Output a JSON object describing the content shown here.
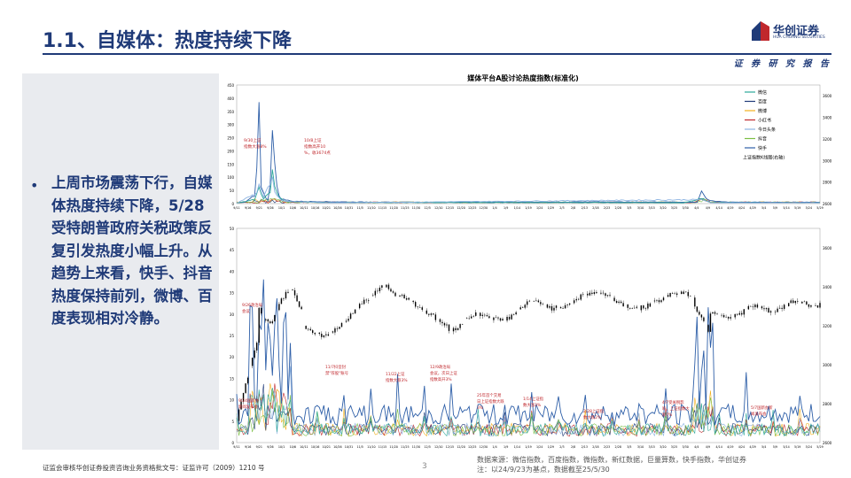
{
  "page": {
    "title": "1.1、自媒体：热度持续下降",
    "logo_name": "华创证券",
    "logo_sub": "HUA CHUANG SECURITIES",
    "report_tag": "证 券 研 究 报 告",
    "bullet_text": "上周市场震荡下行，自媒体热度持续下降，5/28受特朗普政府关税政策反复引发热度小幅上升。从趋势上来看，快手、抖音热度保持前列，微博、百度表现相对冷静。",
    "footer_left": "证监会审核华创证券投资咨询业务资格批文号：证监许可（2009）1210 号",
    "page_number": "3",
    "source": "数据来源：微信指数，百度指数，微指数，新红数据，巨量算数，快手指数，华创证券",
    "note": "注：以24/9/23为基点，数据截至25/5/30"
  },
  "colors": {
    "accent": "#1f3a78",
    "weixin": "#2ca89a",
    "baidu": "#1f3a78",
    "weibo": "#f2b01e",
    "xiaohongshu": "#c0282d",
    "toutiao": "#8db4e2",
    "douyin": "#7bbf44",
    "kuaishou": "#2e5fa8",
    "kline": "#000000",
    "annotation": "#c0282d"
  },
  "chart_data": [
    {
      "type": "line",
      "title": "媒体平台A股讨论热度指数(标准化)",
      "legend": [
        "微信",
        "百度",
        "微博",
        "小红书",
        "今日头条",
        "抖音",
        "快手",
        "上证指数K线图(右轴)"
      ],
      "legend_position": "top-right",
      "ylim": [
        0,
        450
      ],
      "yticks": [
        0,
        50,
        100,
        150,
        200,
        250,
        300,
        350,
        400,
        450
      ],
      "y2lim": [
        2600,
        3700
      ],
      "y2ticks": [
        2600,
        2800,
        3000,
        3200,
        3400,
        3600
      ],
      "x_ticks": [
        "9/11",
        "9/16",
        "9/21",
        "9/26",
        "10/1",
        "10/6",
        "10/11",
        "10/16",
        "10/21",
        "10/26",
        "10/31",
        "11/5",
        "11/10",
        "11/15",
        "11/20",
        "11/25",
        "11/30",
        "12/5",
        "12/10",
        "12/15",
        "12/20",
        "12/25",
        "12/30",
        "1/4",
        "1/9",
        "1/14",
        "1/19",
        "1/24",
        "1/29",
        "2/3",
        "2/8",
        "2/13",
        "2/18",
        "2/23",
        "2/28",
        "3/5",
        "3/10",
        "3/15",
        "3/20",
        "3/25",
        "3/30",
        "4/4",
        "4/9",
        "4/14",
        "4/19",
        "4/24",
        "4/29",
        "5/4",
        "5/9",
        "5/14",
        "5/19",
        "5/24",
        "5/29"
      ],
      "series_peaks": [
        {
          "name": "快手",
          "points": [
            [
              0,
              3
            ],
            [
              4,
              6
            ],
            [
              8,
              30
            ],
            [
              9,
              130
            ],
            [
              10,
              415
            ],
            [
              11,
              70
            ],
            [
              12,
              40
            ],
            [
              13,
              20
            ],
            [
              14,
              15
            ],
            [
              15,
              80
            ],
            [
              16,
              320
            ],
            [
              17,
              150
            ],
            [
              18,
              60
            ],
            [
              19,
              30
            ],
            [
              20,
              18
            ],
            [
              24,
              10
            ],
            [
              30,
              8
            ],
            [
              40,
              7
            ],
            [
              50,
              6
            ],
            [
              60,
              6
            ],
            [
              70,
              5
            ],
            [
              80,
              5
            ],
            [
              100,
              5
            ],
            [
              120,
              5
            ],
            [
              140,
              5
            ],
            [
              150,
              6
            ],
            [
              160,
              7
            ],
            [
              170,
              6
            ],
            [
              190,
              6
            ],
            [
              200,
              5
            ],
            [
              206,
              5
            ],
            [
              208,
              50
            ],
            [
              210,
              20
            ],
            [
              212,
              10
            ],
            [
              220,
              6
            ],
            [
              240,
              5
            ],
            [
              260,
              5
            ]
          ]
        },
        {
          "name": "微信",
          "points": [
            [
              0,
              2
            ],
            [
              8,
              15
            ],
            [
              10,
              60
            ],
            [
              12,
              20
            ],
            [
              15,
              40
            ],
            [
              16,
              130
            ],
            [
              17,
              60
            ],
            [
              19,
              25
            ],
            [
              22,
              8
            ],
            [
              40,
              4
            ],
            [
              80,
              4
            ],
            [
              120,
              4
            ],
            [
              160,
              4
            ],
            [
              200,
              3
            ],
            [
              208,
              20
            ],
            [
              212,
              4
            ],
            [
              260,
              3
            ]
          ]
        },
        {
          "name": "今日头条",
          "points": [
            [
              0,
              2
            ],
            [
              9,
              40
            ],
            [
              10,
              80
            ],
            [
              12,
              25
            ],
            [
              16,
              90
            ],
            [
              17,
              40
            ],
            [
              20,
              10
            ],
            [
              40,
              3
            ],
            [
              208,
              15
            ],
            [
              212,
              3
            ],
            [
              260,
              3
            ]
          ]
        }
      ],
      "annotations": [
        "9/30上证指数大涨8%",
        "10/8上证指数高开10%，收3674点"
      ]
    },
    {
      "type": "line",
      "ylim": [
        0,
        50
      ],
      "yticks": [
        0,
        5,
        10,
        15,
        20,
        25,
        30,
        35,
        40,
        45,
        50
      ],
      "y2lim": [
        2600,
        3700
      ],
      "y2ticks": [
        2600,
        2800,
        3000,
        3200,
        3400,
        3600
      ],
      "x_ticks": [
        "9/11",
        "9/16",
        "9/21",
        "9/26",
        "10/1",
        "10/6",
        "10/11",
        "10/16",
        "10/21",
        "10/26",
        "10/31",
        "11/5",
        "11/10",
        "11/15",
        "11/20",
        "11/25",
        "11/30",
        "12/5",
        "12/10",
        "12/15",
        "12/20",
        "12/25",
        "12/30",
        "1/4",
        "1/9",
        "1/14",
        "1/19",
        "1/24",
        "1/29",
        "2/3",
        "2/8",
        "2/13",
        "2/18",
        "2/23",
        "2/28",
        "3/5",
        "3/10",
        "3/15",
        "3/20",
        "3/25",
        "3/30",
        "4/4",
        "4/9",
        "4/14",
        "4/19",
        "4/24",
        "4/29",
        "5/4",
        "5/9",
        "5/14",
        "5/19",
        "5/24",
        "5/29"
      ],
      "annotations": [
        "9/24国新办新闻发布会",
        "9/26政治局会议",
        "11/7抖音封禁\"荐股\"账号",
        "11/22上证指数大跌3%",
        "12/9政治局会议，次日上证指数高开3%",
        "25年首个交易日上证指数大跌3%",
        "1/14上证指数大涨3%",
        "2/28上证指数大跌2%",
        "4/7受关税影响，上证指数大跌7%",
        "5/7国新办新闻发布会"
      ]
    }
  ]
}
